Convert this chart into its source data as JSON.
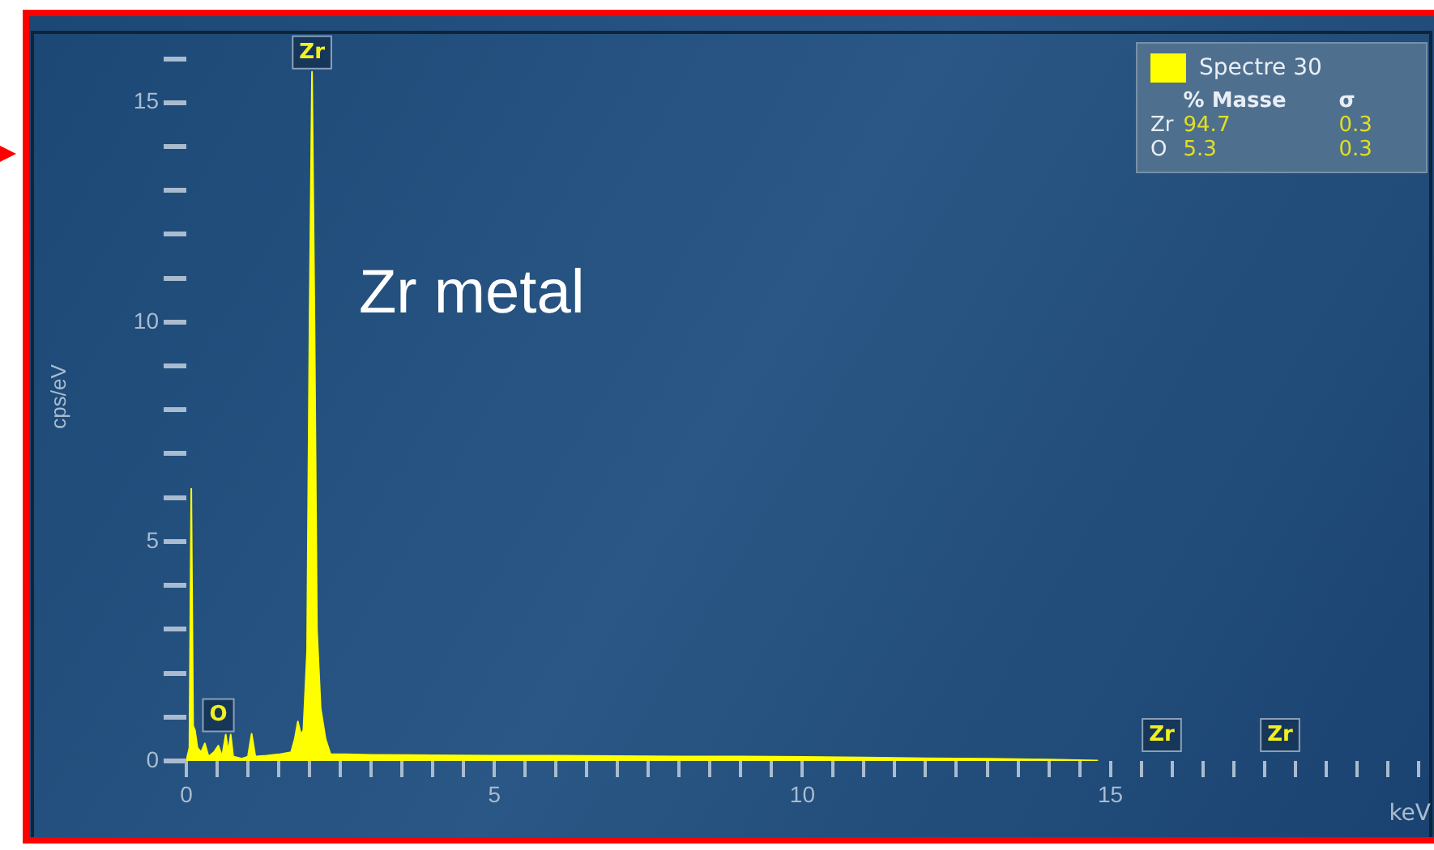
{
  "chart_data": {
    "type": "area",
    "xlabel": "keV",
    "ylabel": "cps/eV",
    "x": [
      0,
      0.05,
      0.08,
      0.11,
      0.14,
      0.18,
      0.24,
      0.3,
      0.36,
      0.45,
      0.52,
      0.58,
      0.64,
      0.68,
      0.72,
      0.76,
      0.9,
      1.0,
      1.06,
      1.12,
      1.3,
      1.5,
      1.7,
      1.76,
      1.81,
      1.86,
      1.9,
      1.96,
      2.0,
      2.04,
      2.08,
      2.12,
      2.18,
      2.26,
      2.34,
      2.6,
      3,
      4,
      5,
      6,
      7,
      8,
      9,
      10,
      11,
      12,
      13,
      14,
      14.8
    ],
    "series": [
      {
        "name": "Spectre 30",
        "color": "#ffff00",
        "values": [
          0,
          0.3,
          6.2,
          0.8,
          0.7,
          0.3,
          0.2,
          0.4,
          0.1,
          0.2,
          0.35,
          0.1,
          0.6,
          0.2,
          0.6,
          0.1,
          0.05,
          0.1,
          0.62,
          0.1,
          0.12,
          0.15,
          0.2,
          0.5,
          0.9,
          0.6,
          0.7,
          2.5,
          10,
          15.7,
          10,
          3,
          1.2,
          0.5,
          0.15,
          0.15,
          0.14,
          0.13,
          0.12,
          0.12,
          0.11,
          0.1,
          0.1,
          0.09,
          0.08,
          0.06,
          0.05,
          0.03,
          0.01
        ]
      }
    ],
    "xlim": [
      0,
      20.2
    ],
    "ylim": [
      0,
      16.6
    ],
    "xticks": [
      0,
      {
        "value": 0.5,
        "label": null
      },
      {
        "value": 1,
        "label": null
      },
      {
        "value": 1.5,
        "label": null
      },
      {
        "value": 2,
        "label": null
      },
      {
        "value": 2.5,
        "label": null
      },
      {
        "value": 3,
        "label": null
      },
      {
        "value": 3.5,
        "label": null
      },
      {
        "value": 4,
        "label": null
      },
      {
        "value": 4.5,
        "label": null
      },
      5,
      {
        "value": 5.5,
        "label": null
      },
      {
        "value": 6,
        "label": null
      },
      {
        "value": 6.5,
        "label": null
      },
      {
        "value": 7,
        "label": null
      },
      {
        "value": 7.5,
        "label": null
      },
      {
        "value": 8,
        "label": null
      },
      {
        "value": 8.5,
        "label": null
      },
      {
        "value": 9,
        "label": null
      },
      {
        "value": 9.5,
        "label": null
      },
      10,
      {
        "value": 10.5,
        "label": null
      },
      {
        "value": 11,
        "label": null
      },
      {
        "value": 11.5,
        "label": null
      },
      {
        "value": 12,
        "label": null
      },
      {
        "value": 12.5,
        "label": null
      },
      {
        "value": 13,
        "label": null
      },
      {
        "value": 13.5,
        "label": null
      },
      {
        "value": 14,
        "label": null
      },
      {
        "value": 14.5,
        "label": null
      },
      15,
      {
        "value": 15.5,
        "label": null
      },
      {
        "value": 16,
        "label": null
      },
      {
        "value": 16.5,
        "label": null
      },
      {
        "value": 17,
        "label": null
      },
      {
        "value": 17.5,
        "label": null
      },
      {
        "value": 18,
        "label": null
      },
      {
        "value": 18.5,
        "label": null
      },
      {
        "value": 19,
        "label": null
      },
      {
        "value": 19.5,
        "label": null
      },
      {
        "value": 20,
        "label": null
      }
    ],
    "yticks": [
      0,
      {
        "value": 1,
        "label": null
      },
      {
        "value": 2,
        "label": null
      },
      {
        "value": 3,
        "label": null
      },
      {
        "value": 4,
        "label": null
      },
      5,
      {
        "value": 6,
        "label": null
      },
      {
        "value": 7,
        "label": null
      },
      {
        "value": 8,
        "label": null
      },
      {
        "value": 9,
        "label": null
      },
      10,
      {
        "value": 11,
        "label": null
      },
      {
        "value": 12,
        "label": null
      },
      {
        "value": 13,
        "label": null
      },
      {
        "value": 14,
        "label": null
      },
      15,
      {
        "value": 16,
        "label": null
      }
    ],
    "grid": false,
    "legend": "top right",
    "annotations": [
      "Zr metal",
      "% Masse",
      "σ",
      "Zr",
      "94.7",
      "0.3",
      "O",
      "5.3",
      "0.3",
      "Zr",
      "Zr",
      {
        "text": "Zr",
        "x": 2.04,
        "y": 15.7
      },
      {
        "text": "O",
        "x": 0.52,
        "y": 0.6
      }
    ]
  }
}
